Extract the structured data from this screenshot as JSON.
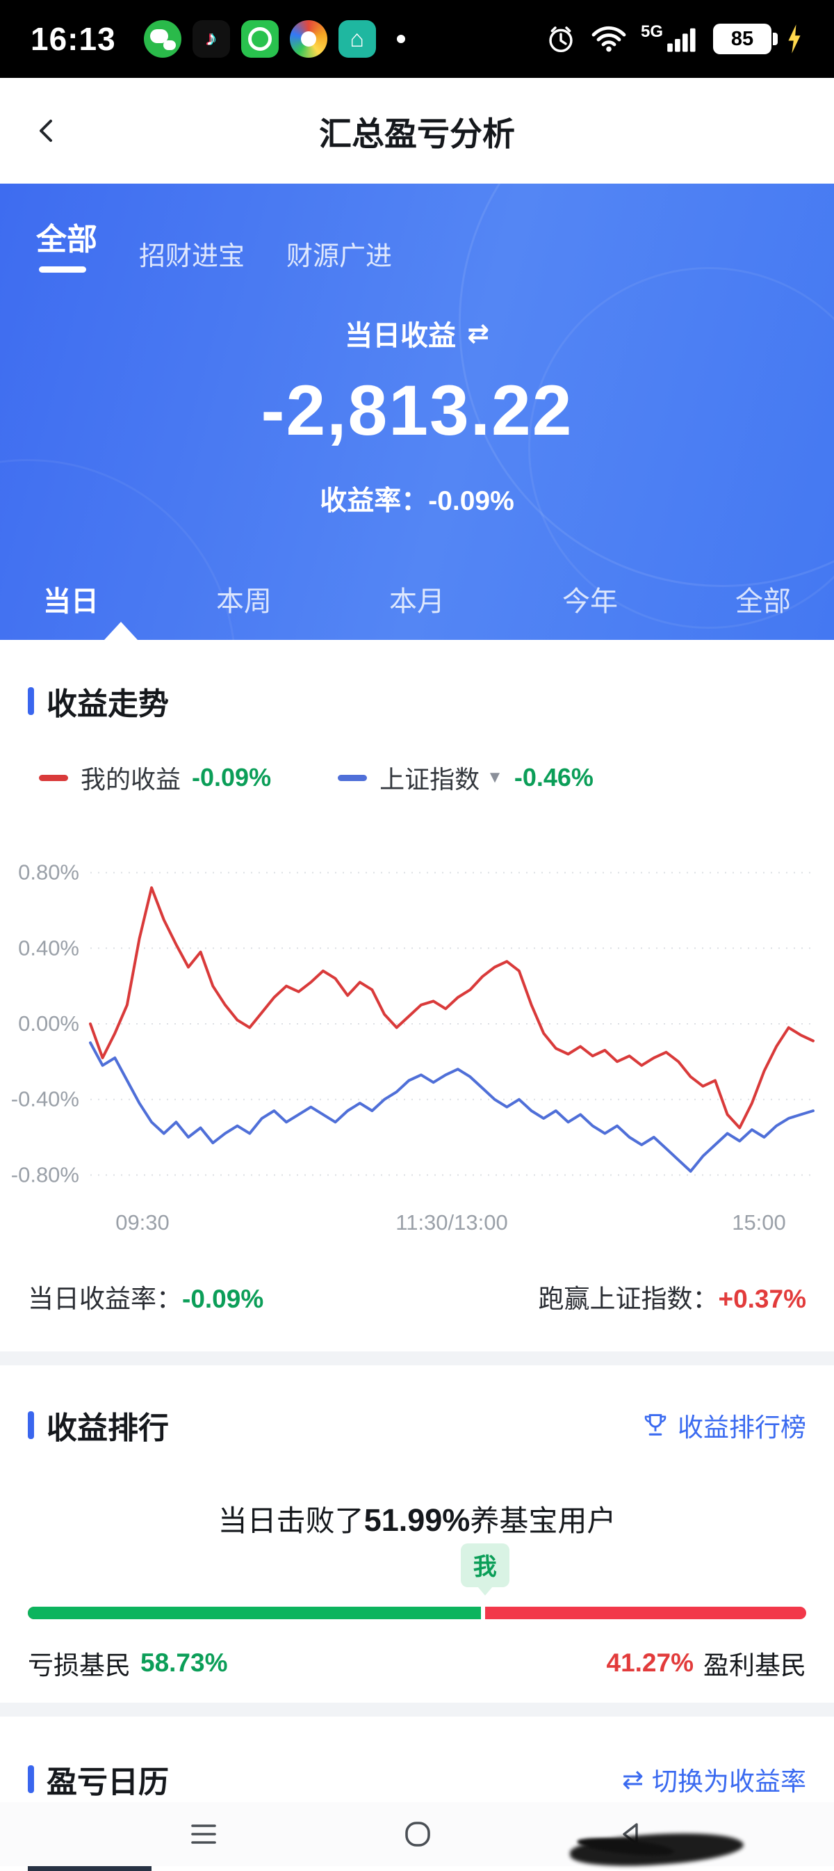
{
  "status_bar": {
    "time": "16:13",
    "network_label": "5G",
    "battery_level": "85",
    "icons": [
      "wechat-icon",
      "tiktok-icon",
      "green-ring-app-icon",
      "browser-app-icon",
      "home-app-icon",
      "notification-dot",
      "alarm-icon",
      "wifi-icon",
      "signal-icon",
      "battery-icon",
      "charging-bolt-icon"
    ]
  },
  "header": {
    "title": "汇总盈亏分析",
    "back_icon": "chevron-left-icon"
  },
  "summary_card": {
    "account_tabs": [
      {
        "label": "全部",
        "active": true
      },
      {
        "label": "招财进宝",
        "active": false
      },
      {
        "label": "财源广进",
        "active": false
      }
    ],
    "metric_label": "当日收益",
    "swap_icon_glyph": "⇄",
    "metric_value": "-2,813.22",
    "rate_label": "收益率：",
    "rate_value": "-0.09%",
    "period_tabs": [
      {
        "label": "当日",
        "active": true
      },
      {
        "label": "本周",
        "active": false
      },
      {
        "label": "本月",
        "active": false
      },
      {
        "label": "今年",
        "active": false
      },
      {
        "label": "全部",
        "active": false
      }
    ]
  },
  "trend_section": {
    "title": "收益走势",
    "legend": [
      {
        "name": "我的收益",
        "value": "-0.09%",
        "color": "#d93a3a"
      },
      {
        "name": "上证指数",
        "value": "-0.46%",
        "color": "#4f6fd8",
        "dropdown_icon": "▼"
      }
    ],
    "footer_left_label": "当日收益率：",
    "footer_left_value": "-0.09%",
    "footer_right_label": "跑赢上证指数：",
    "footer_right_value": "+0.37%"
  },
  "chart_data": {
    "type": "line",
    "title": "收益走势",
    "x_labels": [
      "09:30",
      "11:30/13:00",
      "15:00"
    ],
    "ticks": [
      {
        "label": "0.80%",
        "value": 0.8
      },
      {
        "label": "0.40%",
        "value": 0.4
      },
      {
        "label": "0.00%",
        "value": 0.0
      },
      {
        "label": "-0.40%",
        "value": -0.4
      },
      {
        "label": "-0.80%",
        "value": -0.8
      }
    ],
    "ylim": [
      -0.92,
      0.92
    ],
    "grid": "dotted-horizontal",
    "legend_position": "top",
    "series": [
      {
        "name": "我的收益",
        "color": "#d93a3a",
        "values": [
          0.0,
          -0.18,
          -0.05,
          0.1,
          0.45,
          0.72,
          0.55,
          0.42,
          0.3,
          0.38,
          0.2,
          0.1,
          0.02,
          -0.02,
          0.06,
          0.14,
          0.2,
          0.17,
          0.22,
          0.28,
          0.24,
          0.15,
          0.22,
          0.18,
          0.05,
          -0.02,
          0.04,
          0.1,
          0.12,
          0.08,
          0.14,
          0.18,
          0.25,
          0.3,
          0.33,
          0.28,
          0.1,
          -0.05,
          -0.13,
          -0.16,
          -0.12,
          -0.17,
          -0.14,
          -0.2,
          -0.17,
          -0.22,
          -0.18,
          -0.15,
          -0.2,
          -0.28,
          -0.33,
          -0.3,
          -0.48,
          -0.55,
          -0.42,
          -0.25,
          -0.12,
          -0.02,
          -0.06,
          -0.09
        ]
      },
      {
        "name": "上证指数",
        "color": "#4f6fd8",
        "values": [
          -0.1,
          -0.22,
          -0.18,
          -0.3,
          -0.42,
          -0.52,
          -0.58,
          -0.52,
          -0.6,
          -0.55,
          -0.63,
          -0.58,
          -0.54,
          -0.58,
          -0.5,
          -0.46,
          -0.52,
          -0.48,
          -0.44,
          -0.48,
          -0.52,
          -0.46,
          -0.42,
          -0.46,
          -0.4,
          -0.36,
          -0.3,
          -0.27,
          -0.31,
          -0.27,
          -0.24,
          -0.28,
          -0.34,
          -0.4,
          -0.44,
          -0.4,
          -0.46,
          -0.5,
          -0.46,
          -0.52,
          -0.48,
          -0.54,
          -0.58,
          -0.54,
          -0.6,
          -0.64,
          -0.6,
          -0.66,
          -0.72,
          -0.78,
          -0.7,
          -0.64,
          -0.58,
          -0.62,
          -0.56,
          -0.6,
          -0.54,
          -0.5,
          -0.48,
          -0.46
        ]
      }
    ]
  },
  "ranking_section": {
    "title": "收益排行",
    "trophy_icon": "trophy-icon",
    "link_label": "收益排行榜",
    "beat_prefix": "当日击败了",
    "beat_percent": "51.99%",
    "beat_suffix": "养基宝用户",
    "marker_label": "我",
    "bar": {
      "loss_percent": 58.73,
      "profit_percent": 41.27,
      "loss_color": "#0cb45e",
      "profit_color": "#f2384a"
    },
    "left_label": "亏损基民",
    "left_value": "58.73%",
    "right_value": "41.27%",
    "right_label": "盈利基民"
  },
  "calendar_section": {
    "title": "盈亏日历",
    "switch_icon_glyph": "⇄",
    "link_label": "切换为收益率"
  },
  "colors": {
    "accent_blue": "#3a66ee",
    "link_blue": "#3a6af0",
    "gain_red": "#e23b3b",
    "loss_green": "#0b9e58"
  }
}
